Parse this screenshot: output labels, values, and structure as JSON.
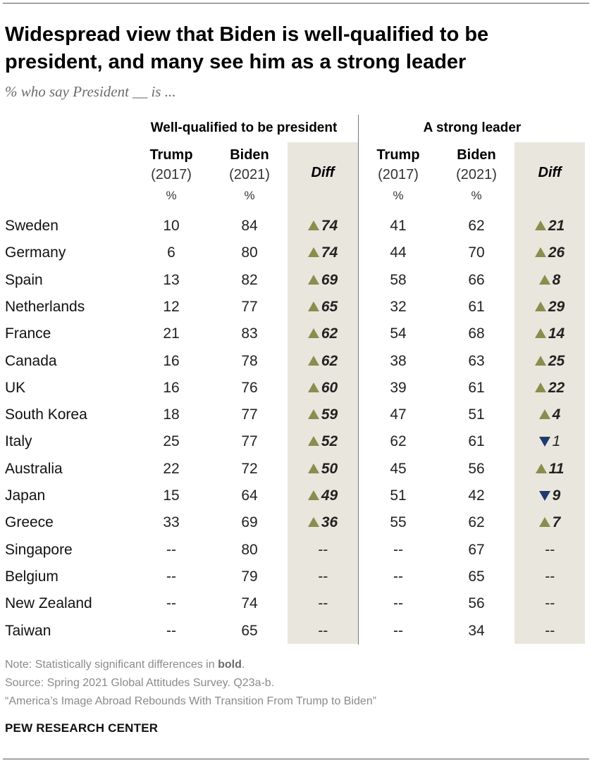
{
  "title": "Widespread view that Biden is well-qualified to be president, and many see him as a strong leader",
  "subtitle": "% who say President __ is ...",
  "chart_data": {
    "type": "table",
    "groups": [
      {
        "label": "Well-qualified to be president",
        "columns": [
          {
            "name": "Trump",
            "year": "(2017)",
            "unit": "%"
          },
          {
            "name": "Biden",
            "year": "(2021)",
            "unit": "%"
          },
          {
            "name": "Diff"
          }
        ]
      },
      {
        "label": "A strong leader",
        "columns": [
          {
            "name": "Trump",
            "year": "(2017)",
            "unit": "%"
          },
          {
            "name": "Biden",
            "year": "(2021)",
            "unit": "%"
          },
          {
            "name": "Diff"
          }
        ]
      }
    ],
    "rows": [
      {
        "country": "Sweden",
        "wq_trump": "10",
        "wq_biden": "84",
        "wq_diff": "74",
        "wq_dir": "up",
        "wq_sig": true,
        "sl_trump": "41",
        "sl_biden": "62",
        "sl_diff": "21",
        "sl_dir": "up",
        "sl_sig": true
      },
      {
        "country": "Germany",
        "wq_trump": "6",
        "wq_biden": "80",
        "wq_diff": "74",
        "wq_dir": "up",
        "wq_sig": true,
        "sl_trump": "44",
        "sl_biden": "70",
        "sl_diff": "26",
        "sl_dir": "up",
        "sl_sig": true
      },
      {
        "country": "Spain",
        "wq_trump": "13",
        "wq_biden": "82",
        "wq_diff": "69",
        "wq_dir": "up",
        "wq_sig": true,
        "sl_trump": "58",
        "sl_biden": "66",
        "sl_diff": "8",
        "sl_dir": "up",
        "sl_sig": true
      },
      {
        "country": "Netherlands",
        "wq_trump": "12",
        "wq_biden": "77",
        "wq_diff": "65",
        "wq_dir": "up",
        "wq_sig": true,
        "sl_trump": "32",
        "sl_biden": "61",
        "sl_diff": "29",
        "sl_dir": "up",
        "sl_sig": true
      },
      {
        "country": "France",
        "wq_trump": "21",
        "wq_biden": "83",
        "wq_diff": "62",
        "wq_dir": "up",
        "wq_sig": true,
        "sl_trump": "54",
        "sl_biden": "68",
        "sl_diff": "14",
        "sl_dir": "up",
        "sl_sig": true
      },
      {
        "country": "Canada",
        "wq_trump": "16",
        "wq_biden": "78",
        "wq_diff": "62",
        "wq_dir": "up",
        "wq_sig": true,
        "sl_trump": "38",
        "sl_biden": "63",
        "sl_diff": "25",
        "sl_dir": "up",
        "sl_sig": true
      },
      {
        "country": "UK",
        "wq_trump": "16",
        "wq_biden": "76",
        "wq_diff": "60",
        "wq_dir": "up",
        "wq_sig": true,
        "sl_trump": "39",
        "sl_biden": "61",
        "sl_diff": "22",
        "sl_dir": "up",
        "sl_sig": true
      },
      {
        "country": "South Korea",
        "wq_trump": "18",
        "wq_biden": "77",
        "wq_diff": "59",
        "wq_dir": "up",
        "wq_sig": true,
        "sl_trump": "47",
        "sl_biden": "51",
        "sl_diff": "4",
        "sl_dir": "up",
        "sl_sig": true
      },
      {
        "country": "Italy",
        "wq_trump": "25",
        "wq_biden": "77",
        "wq_diff": "52",
        "wq_dir": "up",
        "wq_sig": true,
        "sl_trump": "62",
        "sl_biden": "61",
        "sl_diff": "1",
        "sl_dir": "down",
        "sl_sig": false
      },
      {
        "country": "Australia",
        "wq_trump": "22",
        "wq_biden": "72",
        "wq_diff": "50",
        "wq_dir": "up",
        "wq_sig": true,
        "sl_trump": "45",
        "sl_biden": "56",
        "sl_diff": "11",
        "sl_dir": "up",
        "sl_sig": true
      },
      {
        "country": "Japan",
        "wq_trump": "15",
        "wq_biden": "64",
        "wq_diff": "49",
        "wq_dir": "up",
        "wq_sig": true,
        "sl_trump": "51",
        "sl_biden": "42",
        "sl_diff": "9",
        "sl_dir": "down",
        "sl_sig": true
      },
      {
        "country": "Greece",
        "wq_trump": "33",
        "wq_biden": "69",
        "wq_diff": "36",
        "wq_dir": "up",
        "wq_sig": true,
        "sl_trump": "55",
        "sl_biden": "62",
        "sl_diff": "7",
        "sl_dir": "up",
        "sl_sig": true
      },
      {
        "country": "Singapore",
        "wq_trump": "--",
        "wq_biden": "80",
        "wq_diff": "--",
        "wq_dir": "none",
        "wq_sig": false,
        "sl_trump": "--",
        "sl_biden": "67",
        "sl_diff": "--",
        "sl_dir": "none",
        "sl_sig": false
      },
      {
        "country": "Belgium",
        "wq_trump": "--",
        "wq_biden": "79",
        "wq_diff": "--",
        "wq_dir": "none",
        "wq_sig": false,
        "sl_trump": "--",
        "sl_biden": "65",
        "sl_diff": "--",
        "sl_dir": "none",
        "sl_sig": false
      },
      {
        "country": "New Zealand",
        "wq_trump": "--",
        "wq_biden": "74",
        "wq_diff": "--",
        "wq_dir": "none",
        "wq_sig": false,
        "sl_trump": "--",
        "sl_biden": "56",
        "sl_diff": "--",
        "sl_dir": "none",
        "sl_sig": false
      },
      {
        "country": "Taiwan",
        "wq_trump": "--",
        "wq_biden": "65",
        "wq_diff": "--",
        "wq_dir": "none",
        "wq_sig": false,
        "sl_trump": "--",
        "sl_biden": "34",
        "sl_diff": "--",
        "sl_dir": "none",
        "sl_sig": false
      }
    ],
    "colors": {
      "increase": "#8a8d4e",
      "decrease": "#1f3a6e",
      "diff_shade": "#e9e6dd"
    }
  },
  "notes": {
    "note_prefix": "Note: Statistically significant differences in ",
    "note_bold": "bold",
    "note_suffix": ".",
    "source": "Source: Spring 2021 Global Attitudes Survey. Q23a-b.",
    "report": "“America’s Image Abroad Rebounds With Transition From Trump to Biden”"
  },
  "brand": "PEW RESEARCH CENTER"
}
